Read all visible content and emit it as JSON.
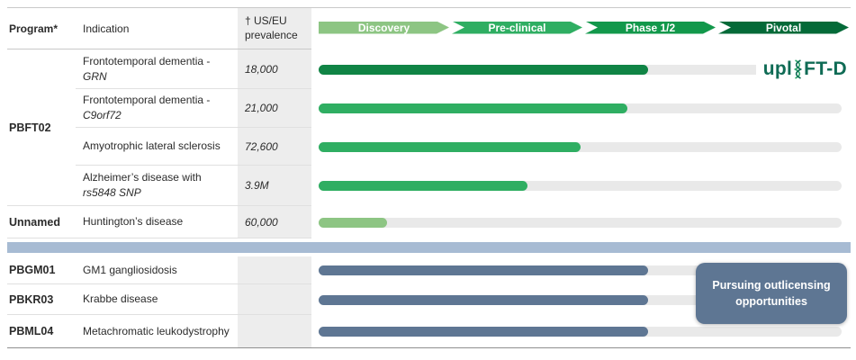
{
  "header": {
    "program_label": "Program*",
    "indication_label": "Indication",
    "prevalence_line1": "† US/EU",
    "prevalence_line2": "prevalence",
    "phases": [
      {
        "label": "Discovery",
        "color": "#8dc583"
      },
      {
        "label": "Pre-clinical",
        "color": "#2fae62"
      },
      {
        "label": "Phase 1/2",
        "color": "#12984b"
      },
      {
        "label": "Pivotal",
        "color": "#046a38"
      }
    ]
  },
  "group_program": "PBFT02",
  "rows": [
    {
      "indication": "Frontotemporal dementia -",
      "indication_italic": "GRN",
      "prevalence": "18,000",
      "progress_pct": 63,
      "bar_color": "#108445"
    },
    {
      "indication": "Frontotemporal dementia -",
      "indication_italic": "C9orf72",
      "prevalence": "21,000",
      "progress_pct": 59,
      "bar_color": "#2fae62"
    },
    {
      "indication": "Amyotrophic lateral sclerosis",
      "indication_italic": "",
      "prevalence": "72,600",
      "progress_pct": 50,
      "bar_color": "#2fae62"
    },
    {
      "indication": "Alzheimer’s disease with",
      "indication_italic": "rs5848 SNP",
      "prevalence": "3.9M",
      "progress_pct": 40,
      "bar_color": "#2fae62"
    },
    {
      "program": "Unnamed",
      "indication": "Huntington’s disease",
      "prevalence": "60,000",
      "progress_pct": 13,
      "bar_color": "#8dc583"
    },
    {
      "program": "PBGM01",
      "indication": "GM1 gangliosidosis",
      "prevalence": "",
      "progress_pct": 63,
      "bar_color": "#5e7693"
    },
    {
      "program": "PBKR03",
      "indication": "Krabbe disease",
      "prevalence": "",
      "progress_pct": 63,
      "bar_color": "#5e7693"
    },
    {
      "program": "PBML04",
      "indication": "Metachromatic leukodystrophy",
      "prevalence": "",
      "progress_pct": 63,
      "bar_color": "#5e7693"
    }
  ],
  "logo": {
    "prefix": "upl",
    "suffix": "FT-D"
  },
  "callout": {
    "line1": "Pursuing outlicensing",
    "line2": "opportunities"
  },
  "colors": {
    "divider": "#a7bbd3",
    "callout_bg": "#5e7693",
    "track": "#e9e9e9",
    "logo_green": "#0f6b55",
    "logo_accent": "#2fa96b"
  },
  "chart_data": {
    "type": "bar",
    "orientation": "horizontal",
    "phases": [
      "Discovery",
      "Pre-clinical",
      "Phase 1/2",
      "Pivotal"
    ],
    "series": [
      {
        "program": "PBFT02",
        "indication": "Frontotemporal dementia - GRN",
        "us_eu_prevalence": "18,000",
        "progress_phases": 2.5
      },
      {
        "program": "PBFT02",
        "indication": "Frontotemporal dementia - C9orf72",
        "us_eu_prevalence": "21,000",
        "progress_phases": 2.4
      },
      {
        "program": "PBFT02",
        "indication": "Amyotrophic lateral sclerosis",
        "us_eu_prevalence": "72,600",
        "progress_phases": 2.0
      },
      {
        "program": "PBFT02",
        "indication": "Alzheimer’s disease with rs5848 SNP",
        "us_eu_prevalence": "3.9M",
        "progress_phases": 1.6
      },
      {
        "program": "Unnamed",
        "indication": "Huntington’s disease",
        "us_eu_prevalence": "60,000",
        "progress_phases": 0.5
      },
      {
        "program": "PBGM01",
        "indication": "GM1 gangliosidosis",
        "us_eu_prevalence": "",
        "progress_phases": 2.5
      },
      {
        "program": "PBKR03",
        "indication": "Krabbe disease",
        "us_eu_prevalence": "",
        "progress_phases": 2.5
      },
      {
        "program": "PBML04",
        "indication": "Metachromatic leukodystrophy",
        "us_eu_prevalence": "",
        "progress_phases": 2.5
      }
    ]
  }
}
